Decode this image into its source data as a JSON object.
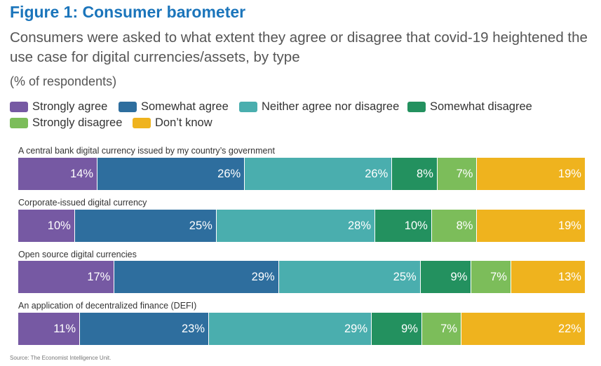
{
  "figure_title": "Figure 1: Consumer barometer",
  "subtitle": "Consumers were asked to what extent they agree or disagree that covid-19 heightened the use case for digital currencies/assets, by type",
  "unit_note": "(% of respondents)",
  "source": "Source: The Economist Intelligence Unit.",
  "colors": {
    "title": "#1b75bb",
    "strongly_agree": "#7659a3",
    "somewhat_agree": "#2e6e9e",
    "neither": "#4aaeae",
    "somewhat_disagree": "#23915f",
    "strongly_disagree": "#7cbd5a",
    "dont_know": "#efb31e"
  },
  "chart_data": {
    "type": "bar",
    "orientation": "horizontal",
    "stacked": true,
    "title": "Figure 1: Consumer barometer",
    "subtitle": "Consumers were asked to what extent they agree or disagree that covid-19 heightened the use case for digital currencies/assets, by type",
    "unit": "(% of respondents)",
    "legend_position": "top",
    "grid": false,
    "categories": [
      "A central bank digital currency issued by my country’s government",
      "Corporate-issued digital currency",
      "Open source digital currencies",
      "An application of decentralized finance (DEFI)"
    ],
    "series": [
      {
        "name": "Strongly agree",
        "color": "#7659a3",
        "values": [
          14,
          10,
          17,
          11
        ],
        "labels": [
          "14%",
          "10%",
          "17%",
          "11%"
        ]
      },
      {
        "name": "Somewhat agree",
        "color": "#2e6e9e",
        "values": [
          26,
          25,
          29,
          23
        ],
        "labels": [
          "26%",
          "25%",
          "29%",
          "23%"
        ]
      },
      {
        "name": "Neither agree nor disagree",
        "color": "#4aaeae",
        "values": [
          26,
          28,
          25,
          29
        ],
        "labels": [
          "26%",
          "28%",
          "25%",
          "29%"
        ]
      },
      {
        "name": "Somewhat disagree",
        "color": "#23915f",
        "values": [
          8,
          10,
          9,
          9
        ],
        "labels": [
          "8%",
          "10%",
          "9%",
          "9%"
        ]
      },
      {
        "name": "Strongly disagree",
        "color": "#7cbd5a",
        "values": [
          7,
          8,
          7,
          7
        ],
        "labels": [
          "7%",
          "8%",
          "7%",
          "7%"
        ]
      },
      {
        "name": "Don’t know",
        "color": "#efb31e",
        "values": [
          19,
          19,
          13,
          22
        ],
        "labels": [
          "19%",
          "19%",
          "13%",
          "22%"
        ]
      }
    ]
  }
}
